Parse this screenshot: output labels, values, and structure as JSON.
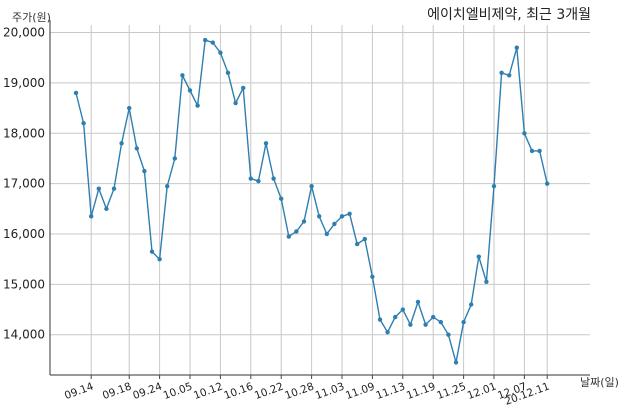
{
  "chart_data": {
    "type": "line",
    "title": "에이치엘비제약, 최근 3개월",
    "xlabel": "날짜(일)",
    "ylabel": "주가(원)",
    "ylim": [
      13200,
      20150
    ],
    "grid": true,
    "y_ticks": [
      14000,
      15000,
      16000,
      17000,
      18000,
      19000,
      20000
    ],
    "y_tick_labels": [
      "14,000",
      "15,000",
      "16,000",
      "17,000",
      "18,000",
      "19,000",
      "20,000"
    ],
    "x_ticks": [
      "09.14",
      "09.18",
      "09.24",
      "10.05",
      "10.12",
      "10.16",
      "10.22",
      "10.28",
      "11.03",
      "11.09",
      "11.13",
      "11.19",
      "11.25",
      "12.01",
      "12.07",
      "20.12.11"
    ],
    "series": [
      {
        "color": "#2e7fb0",
        "values": [
          18800,
          18200,
          16350,
          16900,
          16500,
          16900,
          17800,
          18500,
          17700,
          17250,
          15650,
          15500,
          16950,
          17500,
          19150,
          18850,
          18550,
          19850,
          19800,
          19600,
          19200,
          18600,
          18900,
          17100,
          17050,
          17800,
          17100,
          16700,
          15950,
          16050,
          16250,
          16950,
          16350,
          16000,
          16200,
          16350,
          16400,
          15800,
          15900,
          15150,
          14300,
          14050,
          14350,
          14500,
          14200,
          14650,
          14200,
          14350,
          14250,
          14000,
          13450,
          14250,
          14600,
          15550,
          15050,
          16950,
          19200,
          19150,
          19700,
          18000,
          17650,
          17650,
          17000
        ]
      }
    ]
  }
}
